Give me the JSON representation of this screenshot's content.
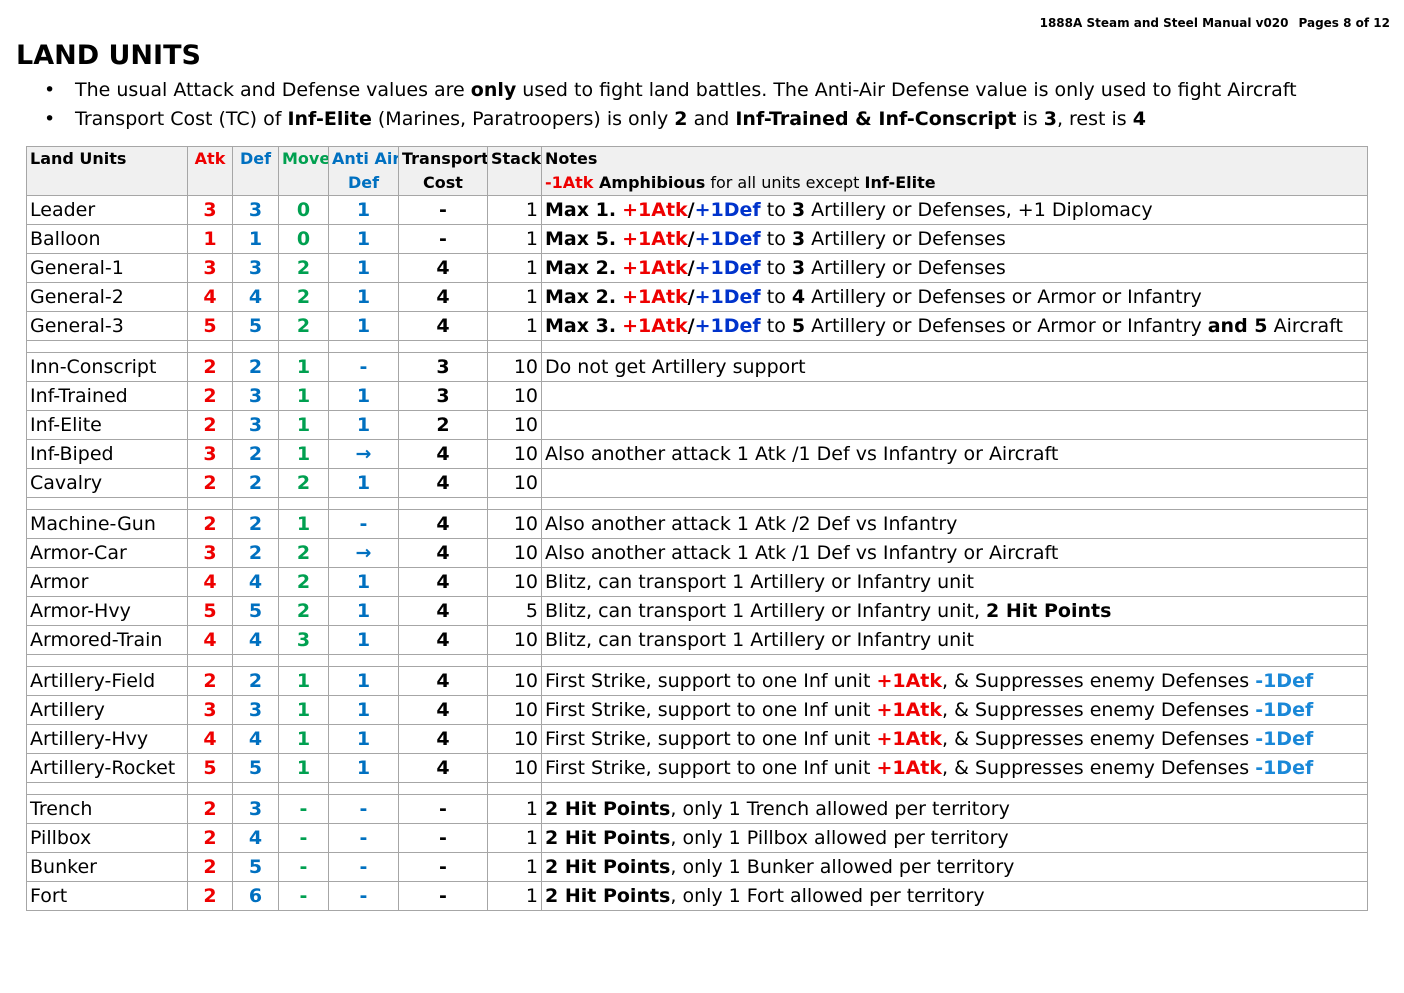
{
  "header": {
    "manual": "1888A Steam and Steel Manual v020",
    "pages": "Pages 8 of 12"
  },
  "title": "LAND UNITS",
  "bullets": [
    [
      {
        "t": "The usual Attack and Defense values are "
      },
      {
        "t": "only",
        "b": true
      },
      {
        "t": " used to fight land battles.  The Anti-Air Defense value is only used to fight Aircraft"
      }
    ],
    [
      {
        "t": "Transport Cost (TC) of "
      },
      {
        "t": "Inf-Elite",
        "b": true
      },
      {
        "t": " (Marines, Paratroopers) is only "
      },
      {
        "t": "2",
        "b": true
      },
      {
        "t": " and "
      },
      {
        "t": "Inf-Trained & Inf-Conscript",
        "b": true
      },
      {
        "t": " is "
      },
      {
        "t": "3",
        "b": true
      },
      {
        "t": ", rest is "
      },
      {
        "t": "4",
        "b": true
      }
    ]
  ],
  "table": {
    "headers": {
      "unit": "Land Units",
      "atk": "Atk",
      "def": "Def",
      "move": "Move",
      "aa1": "Anti Air",
      "aa2": "Def",
      "tc1": "Transport",
      "tc2": "Cost",
      "stack": "Stack",
      "notes": "Notes",
      "notes_sub": [
        {
          "t": "-1Atk",
          "c": "red",
          "b": true
        },
        {
          "t": " Amphibious",
          "b": true
        },
        {
          "t": " for all units except "
        },
        {
          "t": "Inf-Elite",
          "b": true
        }
      ]
    },
    "groups": [
      [
        {
          "name": "Leader",
          "atk": "3",
          "def": "3",
          "move": "0",
          "aa": "1",
          "tc": "-",
          "stack": "1",
          "notes": [
            {
              "t": "Max 1.",
              "b": true
            },
            {
              "t": "  "
            },
            {
              "t": "+1Atk",
              "c": "red",
              "b": true
            },
            {
              "t": "/",
              "b": true
            },
            {
              "t": "+1Def",
              "c": "darkblue",
              "b": true
            },
            {
              "t": " to "
            },
            {
              "t": "3",
              "b": true
            },
            {
              "t": " Artillery or Defenses, +1 Diplomacy"
            }
          ]
        },
        {
          "name": "Balloon",
          "atk": "1",
          "def": "1",
          "move": "0",
          "aa": "1",
          "tc": "-",
          "stack": "1",
          "notes": [
            {
              "t": "Max 5.",
              "b": true
            },
            {
              "t": "  "
            },
            {
              "t": "+1Atk",
              "c": "red",
              "b": true
            },
            {
              "t": "/",
              "b": true
            },
            {
              "t": "+1Def",
              "c": "darkblue",
              "b": true
            },
            {
              "t": " to "
            },
            {
              "t": "3",
              "b": true
            },
            {
              "t": " Artillery or Defenses"
            }
          ]
        },
        {
          "name": "General-1",
          "atk": "3",
          "def": "3",
          "move": "2",
          "aa": "1",
          "tc": "4",
          "stack": "1",
          "notes": [
            {
              "t": "Max 2.",
              "b": true
            },
            {
              "t": "  "
            },
            {
              "t": "+1Atk",
              "c": "red",
              "b": true
            },
            {
              "t": "/",
              "b": true
            },
            {
              "t": "+1Def",
              "c": "darkblue",
              "b": true
            },
            {
              "t": " to "
            },
            {
              "t": "3",
              "b": true
            },
            {
              "t": " Artillery or Defenses"
            }
          ]
        },
        {
          "name": "General-2",
          "atk": "4",
          "def": "4",
          "move": "2",
          "aa": "1",
          "tc": "4",
          "stack": "1",
          "notes": [
            {
              "t": "Max 2.",
              "b": true
            },
            {
              "t": "  "
            },
            {
              "t": "+1Atk",
              "c": "red",
              "b": true
            },
            {
              "t": "/",
              "b": true
            },
            {
              "t": "+1Def",
              "c": "darkblue",
              "b": true
            },
            {
              "t": " to "
            },
            {
              "t": "4",
              "b": true
            },
            {
              "t": " Artillery or Defenses or Armor or Infantry"
            }
          ]
        },
        {
          "name": "General-3",
          "atk": "5",
          "def": "5",
          "move": "2",
          "aa": "1",
          "tc": "4",
          "stack": "1",
          "notes": [
            {
              "t": "Max 3.",
              "b": true
            },
            {
              "t": "  "
            },
            {
              "t": "+1Atk",
              "c": "red",
              "b": true
            },
            {
              "t": "/",
              "b": true
            },
            {
              "t": "+1Def",
              "c": "darkblue",
              "b": true
            },
            {
              "t": " to "
            },
            {
              "t": "5",
              "b": true
            },
            {
              "t": " Artillery or Defenses or Armor or Infantry "
            },
            {
              "t": "and 5",
              "b": true
            },
            {
              "t": " Aircraft"
            }
          ]
        }
      ],
      [
        {
          "name": "Inn-Conscript",
          "atk": "2",
          "def": "2",
          "move": "1",
          "aa": "-",
          "tc": "3",
          "stack": "10",
          "notes": [
            {
              "t": "Do not get Artillery support"
            }
          ]
        },
        {
          "name": "Inf-Trained",
          "atk": "2",
          "def": "3",
          "move": "1",
          "aa": "1",
          "tc": "3",
          "stack": "10",
          "notes": []
        },
        {
          "name": "Inf-Elite",
          "atk": "2",
          "def": "3",
          "move": "1",
          "aa": "1",
          "tc": "2",
          "stack": "10",
          "notes": []
        },
        {
          "name": "Inf-Biped",
          "atk": "3",
          "def": "2",
          "move": "1",
          "aa": "→",
          "tc": "4",
          "stack": "10",
          "notes": [
            {
              "t": "Also another attack 1 Atk /1 Def vs Infantry or Aircraft"
            }
          ]
        },
        {
          "name": "Cavalry",
          "atk": "2",
          "def": "2",
          "move": "2",
          "aa": "1",
          "tc": "4",
          "stack": "10",
          "notes": []
        }
      ],
      [
        {
          "name": "Machine-Gun",
          "atk": "2",
          "def": "2",
          "move": "1",
          "aa": "-",
          "tc": "4",
          "stack": "10",
          "notes": [
            {
              "t": "Also another attack 1 Atk /2 Def vs Infantry"
            }
          ]
        },
        {
          "name": "Armor-Car",
          "atk": "3",
          "def": "2",
          "move": "2",
          "aa": "→",
          "tc": "4",
          "stack": "10",
          "notes": [
            {
              "t": "Also another attack 1 Atk /1 Def vs Infantry or Aircraft"
            }
          ]
        },
        {
          "name": "Armor",
          "atk": "4",
          "def": "4",
          "move": "2",
          "aa": "1",
          "tc": "4",
          "stack": "10",
          "notes": [
            {
              "t": "Blitz, can transport 1 Artillery or Infantry unit"
            }
          ]
        },
        {
          "name": "Armor-Hvy",
          "atk": "5",
          "def": "5",
          "move": "2",
          "aa": "1",
          "tc": "4",
          "stack": "5",
          "notes": [
            {
              "t": "Blitz, can transport 1 Artillery or Infantry unit, "
            },
            {
              "t": "2 Hit Points",
              "b": true
            }
          ]
        },
        {
          "name": "Armored-Train",
          "atk": "4",
          "def": "4",
          "move": "3",
          "aa": "1",
          "tc": "4",
          "stack": "10",
          "notes": [
            {
              "t": "Blitz, can transport 1 Artillery or Infantry unit"
            }
          ]
        }
      ],
      [
        {
          "name": "Artillery-Field",
          "atk": "2",
          "def": "2",
          "move": "1",
          "aa": "1",
          "tc": "4",
          "stack": "10",
          "notes": [
            {
              "t": "First Strike, support to one Inf unit "
            },
            {
              "t": "+1Atk",
              "c": "red",
              "b": true
            },
            {
              "t": ", & Suppresses enemy Defenses "
            },
            {
              "t": "-1Def",
              "c": "lightblue",
              "b": true
            }
          ]
        },
        {
          "name": "Artillery",
          "atk": "3",
          "def": "3",
          "move": "1",
          "aa": "1",
          "tc": "4",
          "stack": "10",
          "notes": [
            {
              "t": "First Strike, support to one Inf unit "
            },
            {
              "t": "+1Atk",
              "c": "red",
              "b": true
            },
            {
              "t": ", & Suppresses enemy Defenses "
            },
            {
              "t": "-1Def",
              "c": "lightblue",
              "b": true
            }
          ]
        },
        {
          "name": "Artillery-Hvy",
          "atk": "4",
          "def": "4",
          "move": "1",
          "aa": "1",
          "tc": "4",
          "stack": "10",
          "notes": [
            {
              "t": "First Strike, support to one Inf unit "
            },
            {
              "t": "+1Atk",
              "c": "red",
              "b": true
            },
            {
              "t": ", & Suppresses enemy Defenses "
            },
            {
              "t": "-1Def",
              "c": "lightblue",
              "b": true
            }
          ]
        },
        {
          "name": "Artillery-Rocket",
          "atk": "5",
          "def": "5",
          "move": "1",
          "aa": "1",
          "tc": "4",
          "stack": "10",
          "notes": [
            {
              "t": "First Strike, support to one Inf unit "
            },
            {
              "t": "+1Atk",
              "c": "red",
              "b": true
            },
            {
              "t": ", & Suppresses enemy Defenses "
            },
            {
              "t": "-1Def",
              "c": "lightblue",
              "b": true
            }
          ]
        }
      ],
      [
        {
          "name": "Trench",
          "atk": "2",
          "def": "3",
          "move": "-",
          "aa": "-",
          "tc": "-",
          "stack": "1",
          "notes": [
            {
              "t": "2 Hit Points",
              "b": true
            },
            {
              "t": ", only 1 Trench allowed per territory"
            }
          ]
        },
        {
          "name": "Pillbox",
          "atk": "2",
          "def": "4",
          "move": "-",
          "aa": "-",
          "tc": "-",
          "stack": "1",
          "notes": [
            {
              "t": "2 Hit Points",
              "b": true
            },
            {
              "t": ", only 1 Pillbox allowed per territory"
            }
          ]
        },
        {
          "name": "Bunker",
          "atk": "2",
          "def": "5",
          "move": "-",
          "aa": "-",
          "tc": "-",
          "stack": "1",
          "notes": [
            {
              "t": "2 Hit Points",
              "b": true
            },
            {
              "t": ", only 1 Bunker allowed per territory"
            }
          ]
        },
        {
          "name": "Fort",
          "atk": "2",
          "def": "6",
          "move": "-",
          "aa": "-",
          "tc": "-",
          "stack": "1",
          "notes": [
            {
              "t": "2 Hit Points",
              "b": true
            },
            {
              "t": ", only 1 Fort allowed per territory"
            }
          ]
        }
      ]
    ]
  },
  "colors": {
    "red": "#ee0000",
    "blue": "#0070c0",
    "green": "#00a050",
    "darkblue": "#0033cc",
    "lightblue": "#1a88d8"
  }
}
